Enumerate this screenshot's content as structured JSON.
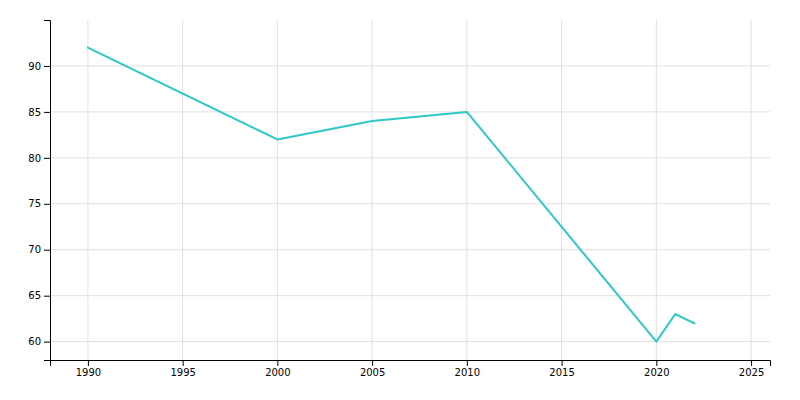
{
  "chart_data": {
    "type": "line",
    "x": [
      1990,
      2000,
      2005,
      2010,
      2020,
      2021,
      2022
    ],
    "values": [
      92,
      82,
      84,
      85,
      60,
      63,
      62
    ],
    "color": "#2ec8c8",
    "xlim": [
      1988,
      2026
    ],
    "ylim": [
      58,
      95
    ],
    "xticks": [
      1990,
      1995,
      2000,
      2005,
      2010,
      2015,
      2020,
      2025
    ],
    "yticks": [
      60,
      65,
      70,
      75,
      80,
      85,
      90
    ],
    "grid": true
  }
}
